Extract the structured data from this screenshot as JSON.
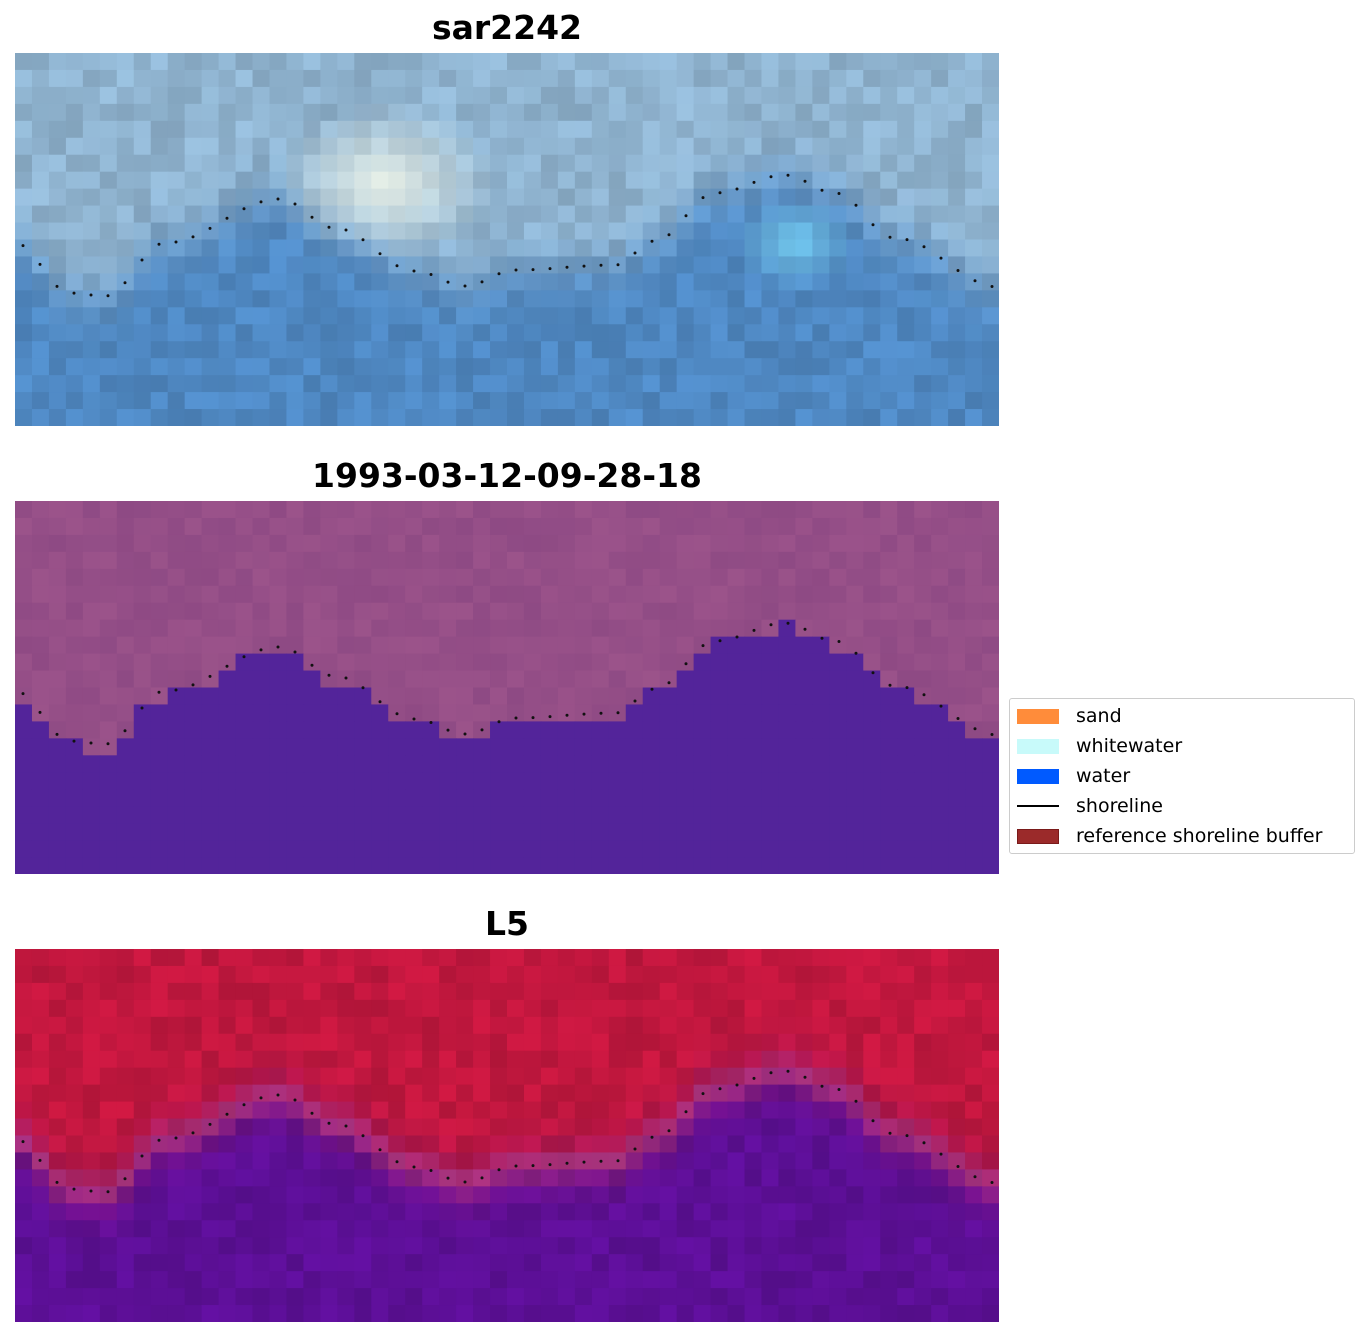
{
  "panels": [
    {
      "title": "sar2242",
      "style": "rgb"
    },
    {
      "title": "1993-03-12-09-28-18",
      "style": "classification"
    },
    {
      "title": "L5",
      "style": "index"
    }
  ],
  "legend": {
    "items": [
      {
        "label": "sand",
        "color": "#ff8c3a",
        "kind": "patch"
      },
      {
        "label": "whitewater",
        "color": "#c8fafa",
        "kind": "patch"
      },
      {
        "label": "water",
        "color": "#005aff",
        "kind": "patch"
      },
      {
        "label": "shoreline",
        "color": "#000000",
        "kind": "line"
      },
      {
        "label": "reference shoreline buffer",
        "color": "#9b2a2a",
        "kind": "patch"
      }
    ]
  },
  "colors": {
    "rgb_land": "#8fb3cf",
    "rgb_water": "#4f88c2",
    "rgb_bright": "#f2f7ea",
    "class_land": "#8e4a84",
    "class_water": "#53249a",
    "index_land": "#c1173e",
    "index_water": "#5c0f96"
  }
}
